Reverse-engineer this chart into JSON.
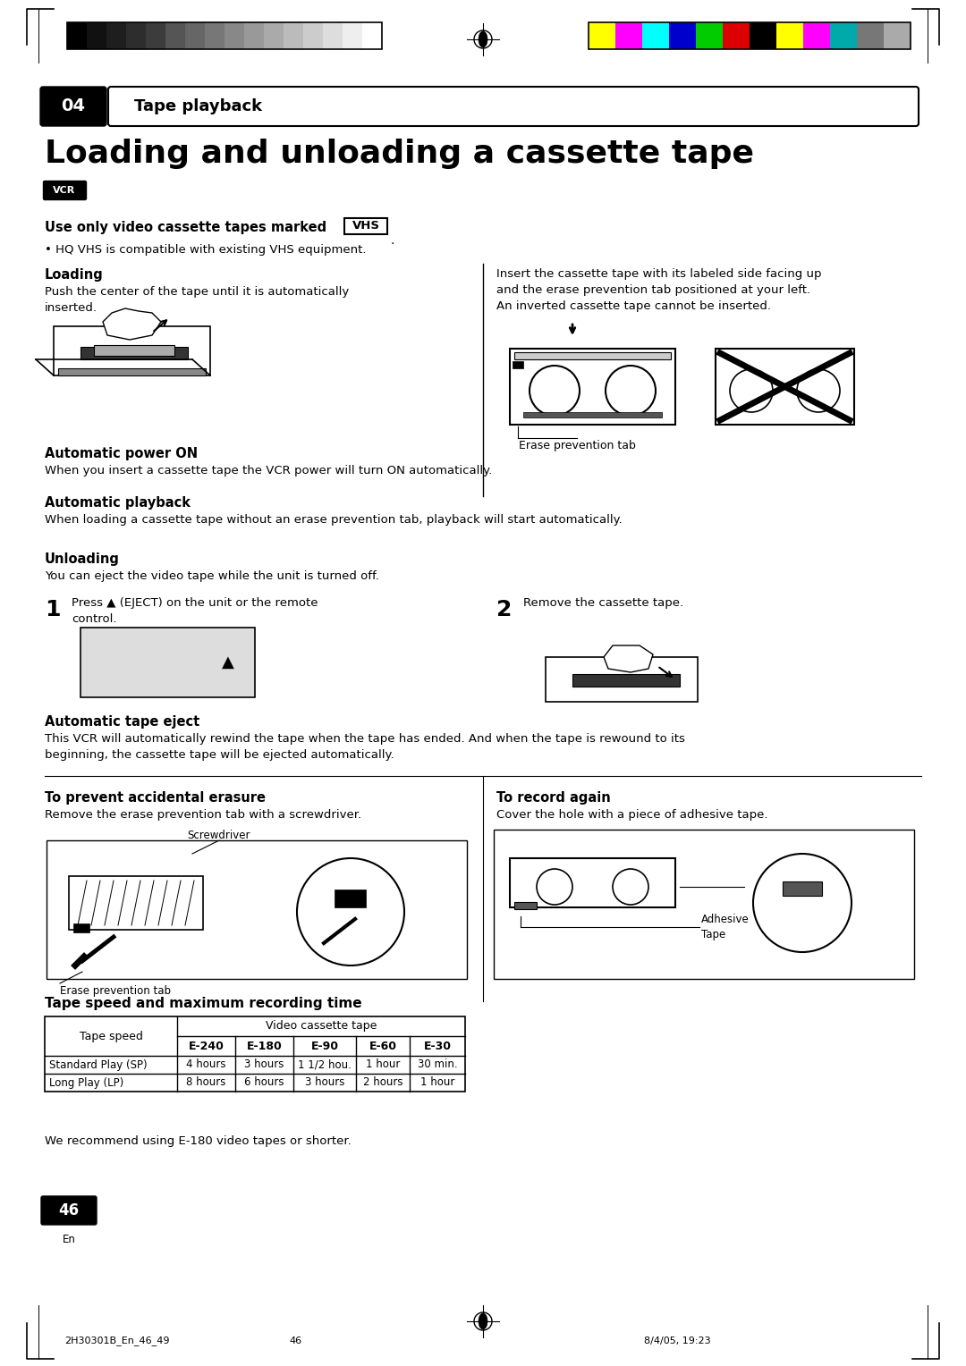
{
  "page_title": "Loading and unloading a cassette tape",
  "section_num": "04",
  "section_title": "Tape playback",
  "page_num": "46",
  "page_footer_left": "2H30301B_En_46_49",
  "page_footer_center": "46",
  "page_footer_right": "8/4/05, 19:23",
  "bg_color": "#ffffff",
  "grayscale_colors": [
    "#000000",
    "#111111",
    "#1e1e1e",
    "#2d2d2d",
    "#3c3c3c",
    "#555555",
    "#666666",
    "#777777",
    "#888888",
    "#999999",
    "#aaaaaa",
    "#bbbbbb",
    "#cccccc",
    "#dddddd",
    "#eeeeee",
    "#ffffff"
  ],
  "color_bars": [
    "#ffff00",
    "#ff00ff",
    "#00ffff",
    "#0000cc",
    "#00cc00",
    "#dd0000",
    "#000000",
    "#ffff00",
    "#ff00ff",
    "#00aaaa",
    "#777777",
    "#aaaaaa"
  ],
  "table_title": "Tape speed and maximum recording time",
  "table_col_labels": [
    "E-240",
    "E-180",
    "E-90",
    "E-60",
    "E-30"
  ],
  "table_row1": [
    "Standard Play (SP)",
    "4 hours",
    "3 hours",
    "1 1/2 hou.",
    "1 hour",
    "30 min."
  ],
  "table_row2": [
    "Long Play (LP)",
    "8 hours",
    "6 hours",
    "3 hours",
    "2 hours",
    "1 hour"
  ],
  "recommend_text": "We recommend using E-180 video tapes or shorter."
}
